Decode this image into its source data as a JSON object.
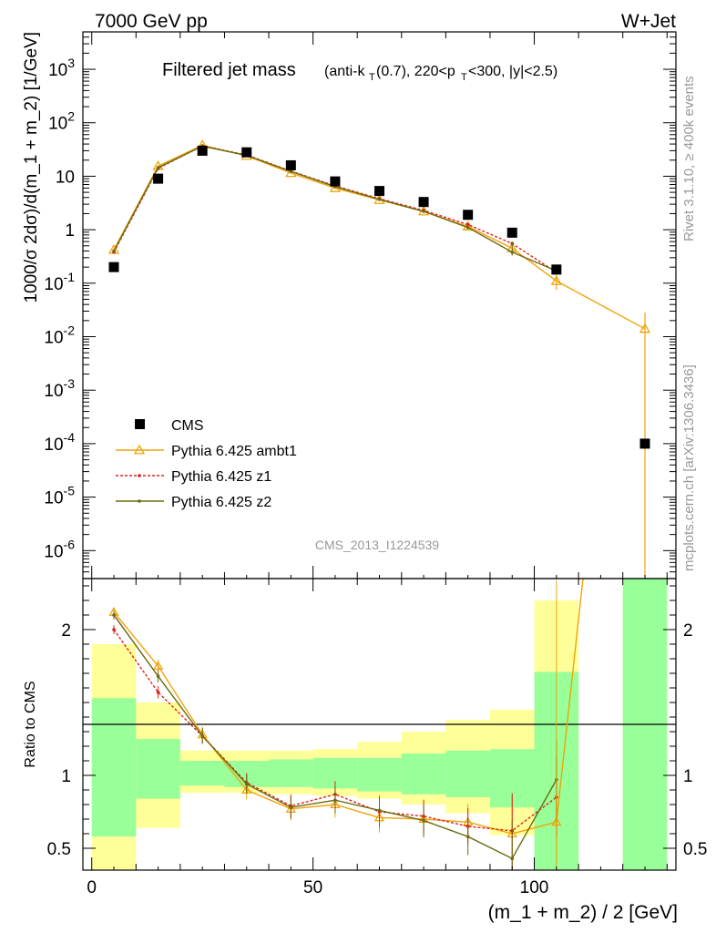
{
  "header": {
    "left": "7000 GeV pp",
    "right": "W+Jet"
  },
  "plot_title": {
    "main": "Filtered jet mass",
    "cuts": "(anti-k_T(0.7), 220<p_T<300, |y|<2.5)"
  },
  "side_labels": {
    "rivet": "Rivet 3.1.10, ≥ 400k events",
    "source": "mcplots.cern.ch [arXiv:1306.3436]"
  },
  "watermark": "CMS_2013_I1224539",
  "legend": [
    {
      "label": "CMS",
      "marker": "square"
    },
    {
      "label": "Pythia 6.425 ambt1",
      "marker": "triangle"
    },
    {
      "label": "Pythia 6.425 z1",
      "marker": "dot-dashed"
    },
    {
      "label": "Pythia 6.425 z2",
      "marker": "dot-solid"
    }
  ],
  "colors": {
    "cms": "#000000",
    "ambt1": "#f0a30a",
    "z1": "#e0201b",
    "z2": "#6b6b10",
    "band_inner": "#99ff99",
    "band_outer": "#ffff99"
  },
  "chart_data": [
    {
      "type": "scatter",
      "panel": "main",
      "ylabel": "1000/σ 2dσ)/d(m_1 + m_2) [1/GeV]",
      "yscale": "log",
      "ylim": [
        3e-07,
        5000
      ],
      "xlim": [
        -2,
        132
      ],
      "y_ticks": [
        "10^-6",
        "10^-5",
        "10^-4",
        "10^-3",
        "10^-2",
        "10^-1",
        "1",
        "10",
        "10^2",
        "10^3"
      ],
      "x": [
        5,
        15,
        25,
        35,
        45,
        55,
        65,
        75,
        85,
        95,
        105,
        125
      ],
      "series": [
        {
          "name": "CMS",
          "values": [
            0.2,
            9,
            30,
            28,
            16,
            8,
            5.3,
            3.3,
            1.9,
            0.88,
            0.18,
            0.0001
          ]
        },
        {
          "name": "Pythia 6.425 ambt1",
          "values": [
            0.42,
            15.5,
            38,
            24,
            11.5,
            6,
            3.6,
            2.2,
            1.15,
            0.45,
            0.11,
            0.014
          ]
        },
        {
          "name": "Pythia 6.425 z1",
          "values": [
            0.38,
            14,
            37,
            25,
            12.5,
            6.6,
            3.8,
            2.3,
            1.25,
            0.55,
            0.16,
            null
          ]
        },
        {
          "name": "Pythia 6.425 z2",
          "values": [
            0.4,
            14.5,
            36.5,
            24.5,
            12.3,
            6.4,
            3.7,
            2.2,
            1.1,
            0.38,
            0.17,
            null
          ]
        }
      ]
    },
    {
      "type": "line",
      "panel": "ratio",
      "xlabel": "(m_1 + m_2) / 2 [GeV]",
      "ylabel": "Ratio to CMS",
      "ylim": [
        0.35,
        2.35
      ],
      "xlim": [
        -2,
        132
      ],
      "x_ticks": [
        "0",
        "50",
        "100"
      ],
      "y_ticks": [
        "0.5",
        "1",
        "2"
      ],
      "x": [
        5,
        15,
        25,
        35,
        45,
        55,
        65,
        75,
        85,
        95,
        105
      ],
      "bands": {
        "bins": [
          [
            0,
            10
          ],
          [
            10,
            20
          ],
          [
            20,
            30
          ],
          [
            30,
            40
          ],
          [
            40,
            50
          ],
          [
            50,
            60
          ],
          [
            60,
            70
          ],
          [
            70,
            80
          ],
          [
            80,
            90
          ],
          [
            90,
            100
          ],
          [
            100,
            110
          ],
          [
            120,
            130
          ]
        ],
        "inner": [
          [
            0.58,
            1.53
          ],
          [
            0.84,
            1.25
          ],
          [
            0.93,
            1.1
          ],
          [
            0.92,
            1.1
          ],
          [
            0.92,
            1.11
          ],
          [
            0.91,
            1.12
          ],
          [
            0.89,
            1.12
          ],
          [
            0.87,
            1.15
          ],
          [
            0.85,
            1.17
          ],
          [
            0.78,
            1.18
          ],
          [
            0.35,
            1.71
          ],
          [
            0.35,
            2.35
          ]
        ],
        "outer": [
          [
            0.35,
            1.9
          ],
          [
            0.64,
            1.5
          ],
          [
            0.88,
            1.17
          ],
          [
            0.88,
            1.17
          ],
          [
            0.87,
            1.17
          ],
          [
            0.86,
            1.18
          ],
          [
            0.84,
            1.23
          ],
          [
            0.8,
            1.3
          ],
          [
            0.74,
            1.38
          ],
          [
            0.59,
            1.45
          ],
          [
            0.35,
            2.2
          ],
          [
            0.35,
            2.35
          ]
        ]
      },
      "series": [
        {
          "name": "Pythia 6.425 ambt1",
          "values": [
            2.12,
            1.75,
            1.28,
            0.9,
            0.77,
            0.8,
            0.71,
            0.7,
            0.68,
            0.6,
            0.68
          ]
        },
        {
          "name": "Pythia 6.425 z1",
          "values": [
            2.0,
            1.57,
            1.27,
            0.95,
            0.79,
            0.87,
            0.75,
            0.72,
            0.65,
            0.62,
            0.85
          ]
        },
        {
          "name": "Pythia 6.425 z2",
          "values": [
            2.1,
            1.68,
            1.27,
            0.94,
            0.78,
            0.83,
            0.76,
            0.69,
            0.58,
            0.43,
            0.97
          ]
        }
      ]
    }
  ]
}
